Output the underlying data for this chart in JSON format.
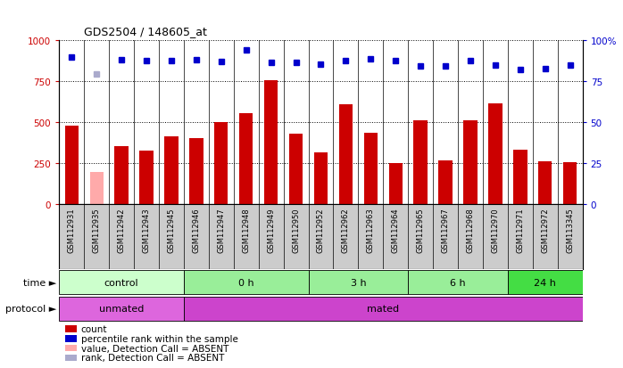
{
  "title": "GDS2504 / 148605_at",
  "samples": [
    "GSM112931",
    "GSM112935",
    "GSM112942",
    "GSM112943",
    "GSM112945",
    "GSM112946",
    "GSM112947",
    "GSM112948",
    "GSM112949",
    "GSM112950",
    "GSM112952",
    "GSM112962",
    "GSM112963",
    "GSM112964",
    "GSM112965",
    "GSM112967",
    "GSM112968",
    "GSM112970",
    "GSM112971",
    "GSM112972",
    "GSM113345"
  ],
  "counts": [
    480,
    195,
    355,
    325,
    415,
    405,
    500,
    555,
    755,
    430,
    315,
    610,
    435,
    250,
    510,
    265,
    510,
    615,
    330,
    260,
    255
  ],
  "absent": [
    false,
    true,
    false,
    false,
    false,
    false,
    false,
    false,
    false,
    false,
    false,
    false,
    false,
    false,
    false,
    false,
    false,
    false,
    false,
    false,
    false
  ],
  "percentile_ranks": [
    89.5,
    79.5,
    88.0,
    87.5,
    87.5,
    88.0,
    87.0,
    94.0,
    86.5,
    86.5,
    85.5,
    87.5,
    88.5,
    87.5,
    84.0,
    84.0,
    87.5,
    85.0,
    82.0,
    82.5,
    85.0
  ],
  "absent_rank": [
    false,
    true,
    false,
    false,
    false,
    false,
    false,
    false,
    false,
    false,
    false,
    false,
    false,
    false,
    false,
    false,
    false,
    false,
    false,
    false,
    false
  ],
  "bar_color_normal": "#cc0000",
  "bar_color_absent": "#ffaaaa",
  "dot_color_normal": "#0000cc",
  "dot_color_absent": "#aaaacc",
  "bg_color": "#ffffff",
  "yticks_left": [
    0,
    250,
    500,
    750,
    1000
  ],
  "ytick_labels_left": [
    "0",
    "250",
    "500",
    "750",
    "1000"
  ],
  "yticks_right": [
    0,
    25,
    50,
    75,
    100
  ],
  "ytick_labels_right": [
    "0",
    "25",
    "50",
    "75",
    "100%"
  ],
  "time_groups": [
    {
      "label": "control",
      "start": 0,
      "end": 5,
      "color": "#ccffcc"
    },
    {
      "label": "0 h",
      "start": 5,
      "end": 10,
      "color": "#99ee99"
    },
    {
      "label": "3 h",
      "start": 10,
      "end": 14,
      "color": "#99ee99"
    },
    {
      "label": "6 h",
      "start": 14,
      "end": 18,
      "color": "#99ee99"
    },
    {
      "label": "24 h",
      "start": 18,
      "end": 21,
      "color": "#44dd44"
    }
  ],
  "protocol_groups": [
    {
      "label": "unmated",
      "start": 0,
      "end": 5,
      "color": "#dd66dd"
    },
    {
      "label": "mated",
      "start": 5,
      "end": 21,
      "color": "#cc44cc"
    }
  ],
  "legend_items": [
    {
      "color": "#cc0000",
      "label": "count"
    },
    {
      "color": "#0000cc",
      "label": "percentile rank within the sample"
    },
    {
      "color": "#ffaaaa",
      "label": "value, Detection Call = ABSENT"
    },
    {
      "color": "#aaaacc",
      "label": "rank, Detection Call = ABSENT"
    }
  ]
}
